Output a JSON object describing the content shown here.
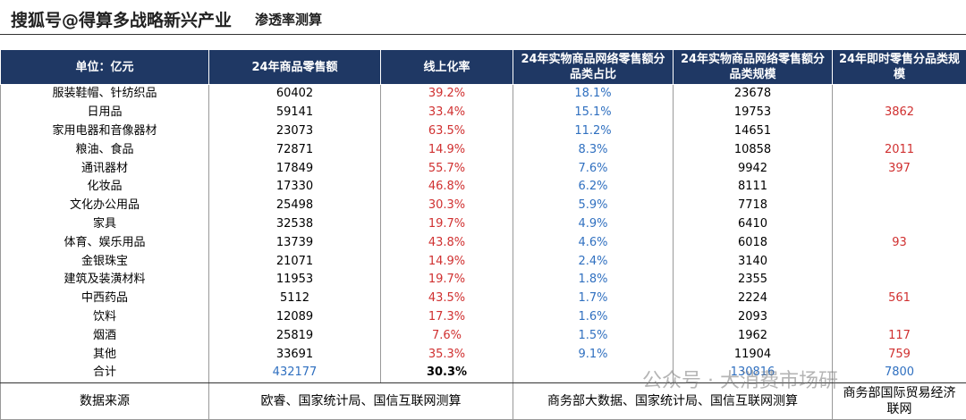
{
  "header": {
    "watermark": "搜狐号@得算多战略新兴产业",
    "title": "渗透率测算"
  },
  "table": {
    "columns": [
      "单位：亿元",
      "24年商品零售额",
      "线上化率",
      "24年实物商品网络零售额分品类占比",
      "24年实物商品网络零售额分品类规模",
      "24年即时零售分品类规模"
    ],
    "rows": [
      [
        "服装鞋帽、针纺织品",
        "60402",
        "39.2%",
        "18.1%",
        "23678",
        null
      ],
      [
        "日用品",
        "59141",
        "33.4%",
        "15.1%",
        "19753",
        "3862"
      ],
      [
        "家用电器和音像器材",
        "23073",
        "63.5%",
        "11.2%",
        "14651",
        null
      ],
      [
        "粮油、食品",
        "72871",
        "14.9%",
        "8.3%",
        "10858",
        "2011"
      ],
      [
        "通讯器材",
        "17849",
        "55.7%",
        "7.6%",
        "9942",
        "397"
      ],
      [
        "化妆品",
        "17330",
        "46.8%",
        "6.2%",
        "8111",
        null
      ],
      [
        "文化办公用品",
        "25498",
        "30.3%",
        "5.9%",
        "7718",
        null
      ],
      [
        "家具",
        "32538",
        "19.7%",
        "4.9%",
        "6410",
        null
      ],
      [
        "体育、娱乐用品",
        "13739",
        "43.8%",
        "4.6%",
        "6018",
        "93"
      ],
      [
        "金银珠宝",
        "21071",
        "14.9%",
        "2.4%",
        "3140",
        null
      ],
      [
        "建筑及装潢材料",
        "11953",
        "19.7%",
        "1.8%",
        "2355",
        null
      ],
      [
        "中西药品",
        "5112",
        "43.5%",
        "1.7%",
        "2224",
        "561"
      ],
      [
        "饮料",
        "12089",
        "17.3%",
        "1.6%",
        "2093",
        null
      ],
      [
        "烟酒",
        "25819",
        "7.6%",
        "1.5%",
        "1962",
        "117"
      ],
      [
        "其他",
        "33691",
        "35.3%",
        "9.1%",
        "11904",
        "759"
      ],
      [
        "合计",
        "432177",
        "30.3%",
        null,
        "130816",
        "7800"
      ]
    ],
    "footer": [
      "数据来源",
      "欧睿、国家统计局、国信互联网测算",
      "商务部大数据、国家统计局、国信互联网测算",
      [
        "商务部国际贸易经济",
        "联网"
      ]
    ]
  },
  "overlay": {
    "watermark": "公众号 · 大消费市场研"
  }
}
